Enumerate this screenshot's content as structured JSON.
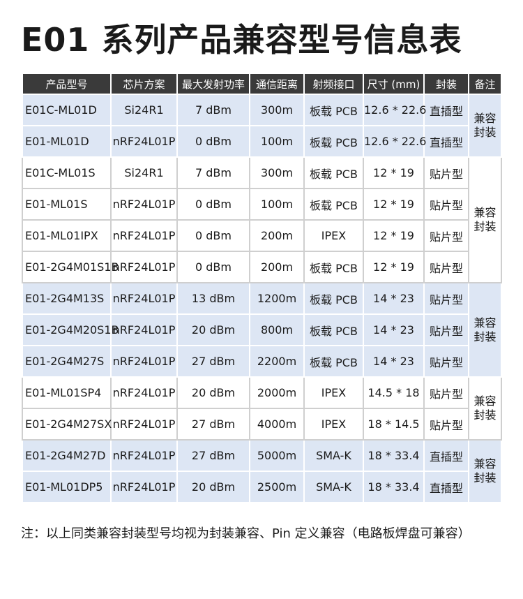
{
  "title": "E01 系列产品兼容型号信息表",
  "headers": [
    "产品型号",
    "芯片方案",
    "最大发射功率",
    "通信距离",
    "射频接口",
    "尺寸 (mm)",
    "封装",
    "备注"
  ],
  "rows": [
    {
      "model": "E01C-ML01D",
      "chip": "Si24R1",
      "power": "7 dBm",
      "range": "300m",
      "rf": "板载 PCB",
      "size": "12.6 * 22.6",
      "pkg": "直插型"
    },
    {
      "model": "E01-ML01D",
      "chip": "nRF24L01P",
      "power": "0 dBm",
      "range": "100m",
      "rf": "板载 PCB",
      "size": "12.6 * 22.6",
      "pkg": "直插型"
    },
    {
      "model": "E01C-ML01S",
      "chip": "Si24R1",
      "power": "7 dBm",
      "range": "300m",
      "rf": "板载 PCB",
      "size": "12 * 19",
      "pkg": "贴片型"
    },
    {
      "model": "E01-ML01S",
      "chip": "nRF24L01P",
      "power": "0 dBm",
      "range": "100m",
      "rf": "板载 PCB",
      "size": "12 * 19",
      "pkg": "贴片型"
    },
    {
      "model": "E01-ML01IPX",
      "chip": "nRF24L01P",
      "power": "0 dBm",
      "range": "200m",
      "rf": "IPEX",
      "size": "12 * 19",
      "pkg": "贴片型"
    },
    {
      "model": "E01-2G4M01S1B",
      "chip": "nRF24L01P",
      "power": "0 dBm",
      "range": "200m",
      "rf": "板载 PCB",
      "size": "12 * 19",
      "pkg": "贴片型"
    },
    {
      "model": "E01-2G4M13S",
      "chip": "nRF24L01P",
      "power": "13 dBm",
      "range": "1200m",
      "rf": "板载 PCB",
      "size": "14 * 23",
      "pkg": "贴片型"
    },
    {
      "model": "E01-2G4M20S1B",
      "chip": "nRF24L01P",
      "power": "20 dBm",
      "range": "800m",
      "rf": "板载 PCB",
      "size": "14 * 23",
      "pkg": "贴片型"
    },
    {
      "model": "E01-2G4M27S",
      "chip": "nRF24L01P",
      "power": "27 dBm",
      "range": "2200m",
      "rf": "板载 PCB",
      "size": "14 * 23",
      "pkg": "贴片型"
    },
    {
      "model": "E01-ML01SP4",
      "chip": "nRF24L01P",
      "power": "20 dBm",
      "range": "2000m",
      "rf": "IPEX",
      "size": "14.5 * 18",
      "pkg": "贴片型"
    },
    {
      "model": "E01-2G4M27SX",
      "chip": "nRF24L01P",
      "power": "27 dBm",
      "range": "4000m",
      "rf": "IPEX",
      "size": "18 * 14.5",
      "pkg": "贴片型"
    },
    {
      "model": "E01-2G4M27D",
      "chip": "nRF24L01P",
      "power": "27 dBm",
      "range": "5000m",
      "rf": "SMA-K",
      "size": "18 * 33.4",
      "pkg": "直插型"
    },
    {
      "model": "E01-ML01DP5",
      "chip": "nRF24L01P",
      "power": "20 dBm",
      "range": "2500m",
      "rf": "SMA-K",
      "size": "18 * 33.4",
      "pkg": "直插型"
    }
  ],
  "groups": [
    {
      "start": 0,
      "span": 2,
      "note_line1": "兼容",
      "note_line2": "封装",
      "style": "blue"
    },
    {
      "start": 2,
      "span": 4,
      "note_line1": "兼容",
      "note_line2": "封装",
      "style": "white"
    },
    {
      "start": 6,
      "span": 3,
      "note_line1": "兼容",
      "note_line2": "封装",
      "style": "blue"
    },
    {
      "start": 9,
      "span": 2,
      "note_line1": "兼容",
      "note_line2": "封装",
      "style": "white"
    },
    {
      "start": 11,
      "span": 2,
      "note_line1": "兼容",
      "note_line2": "封装",
      "style": "blue"
    }
  ],
  "footnote": "注：以上同类兼容封装型号均视为封装兼容、Pin 定义兼容（电路板焊盘可兼容）",
  "colors": {
    "header_bg": "#3a3a3a",
    "header_text": "#ffffff",
    "band_blue": "#dde6f4",
    "band_white": "#ffffff"
  }
}
